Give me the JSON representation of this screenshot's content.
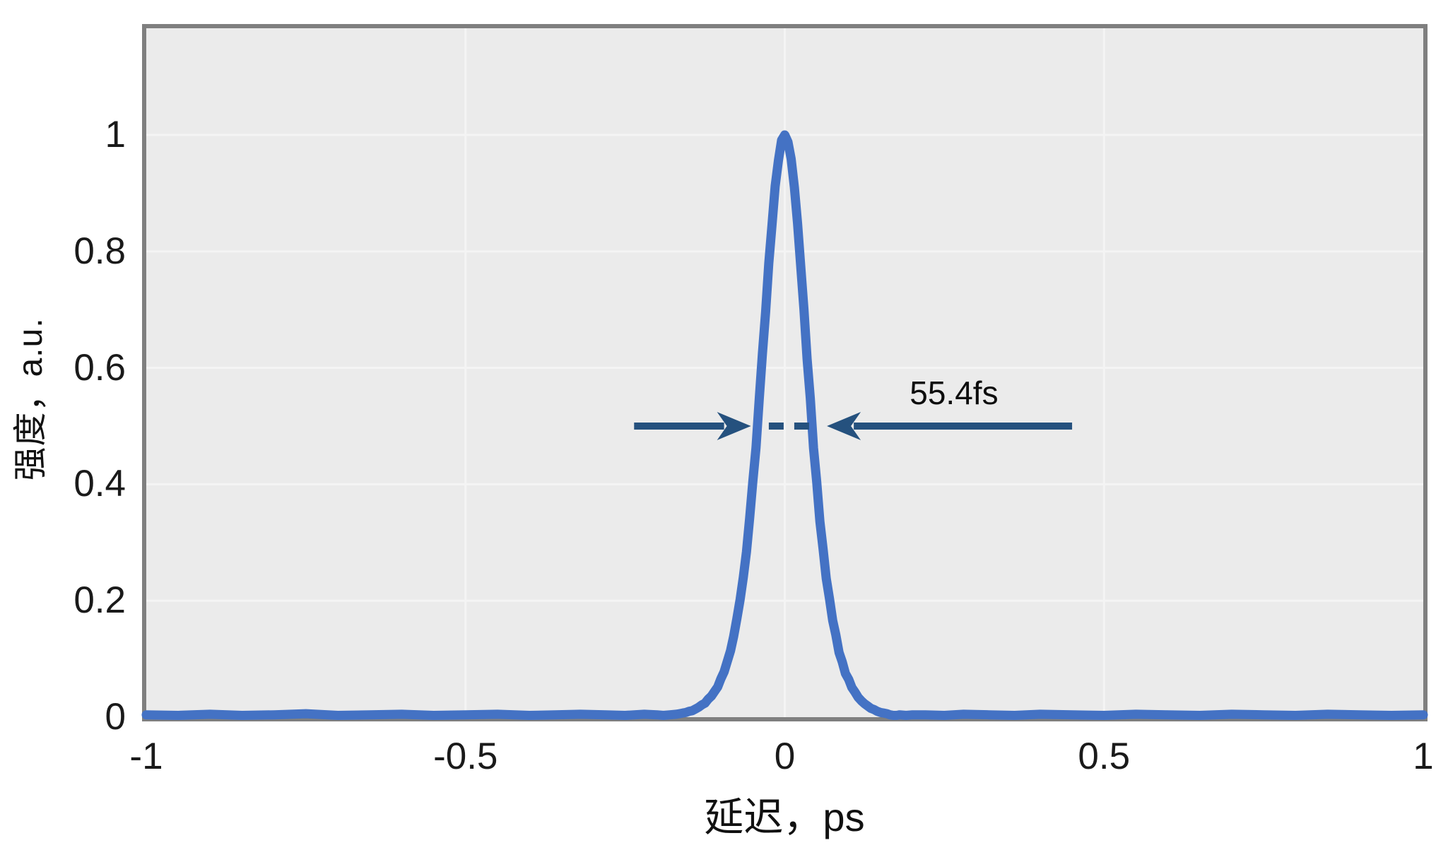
{
  "chart_data": {
    "type": "line",
    "title": "",
    "xlabel": "延迟，ps",
    "ylabel": "强度，a.u.",
    "xlim": [
      -1,
      1
    ],
    "ylim": [
      0,
      1.1833
    ],
    "grid": true,
    "legend": "none",
    "x_ticks": [
      -1,
      -0.5,
      0,
      0.5,
      1
    ],
    "x_tick_labels": [
      "-1",
      "-0.5",
      "0",
      "0.5",
      "1"
    ],
    "y_ticks": [
      0,
      0.2,
      0.4,
      0.6,
      0.8,
      1
    ],
    "y_tick_labels": [
      "0",
      "0.2",
      "0.4",
      "0.6",
      "0.8",
      "1"
    ],
    "plot_bg_color": "#ebebeb",
    "grid_color": "#f4f4f4",
    "border_color": "#7f7f7f",
    "series": [
      {
        "name": "autocorrelation-trace",
        "color": "#4472c4",
        "line_width": 13,
        "points": [
          [
            -1,
            0.004
          ],
          [
            -0.95,
            0.003
          ],
          [
            -0.9,
            0.005
          ],
          [
            -0.85,
            0.003
          ],
          [
            -0.8,
            0.004
          ],
          [
            -0.75,
            0.006
          ],
          [
            -0.7,
            0.003
          ],
          [
            -0.65,
            0.004
          ],
          [
            -0.6,
            0.005
          ],
          [
            -0.55,
            0.003
          ],
          [
            -0.5,
            0.004
          ],
          [
            -0.45,
            0.005
          ],
          [
            -0.4,
            0.003
          ],
          [
            -0.36,
            0.004
          ],
          [
            -0.32,
            0.005
          ],
          [
            -0.28,
            0.004
          ],
          [
            -0.25,
            0.003
          ],
          [
            -0.22,
            0.005
          ],
          [
            -0.2,
            0.004
          ],
          [
            -0.19,
            0.003
          ],
          [
            -0.18,
            0.004
          ],
          [
            -0.17,
            0.005
          ],
          [
            -0.165,
            0.006
          ],
          [
            -0.16,
            0.007
          ],
          [
            -0.155,
            0.008
          ],
          [
            -0.15,
            0.01
          ],
          [
            -0.145,
            0.011
          ],
          [
            -0.14,
            0.014
          ],
          [
            -0.135,
            0.017
          ],
          [
            -0.13,
            0.021
          ],
          [
            -0.125,
            0.024
          ],
          [
            -0.12,
            0.031
          ],
          [
            -0.115,
            0.036
          ],
          [
            -0.11,
            0.044
          ],
          [
            -0.105,
            0.052
          ],
          [
            -0.1,
            0.066
          ],
          [
            -0.095,
            0.078
          ],
          [
            -0.09,
            0.096
          ],
          [
            -0.085,
            0.114
          ],
          [
            -0.08,
            0.139
          ],
          [
            -0.075,
            0.169
          ],
          [
            -0.07,
            0.202
          ],
          [
            -0.065,
            0.24
          ],
          [
            -0.06,
            0.284
          ],
          [
            -0.055,
            0.342
          ],
          [
            -0.05,
            0.405
          ],
          [
            -0.045,
            0.463
          ],
          [
            -0.04,
            0.547
          ],
          [
            -0.035,
            0.625
          ],
          [
            -0.03,
            0.696
          ],
          [
            -0.025,
            0.78
          ],
          [
            -0.02,
            0.845
          ],
          [
            -0.015,
            0.912
          ],
          [
            -0.01,
            0.956
          ],
          [
            -0.005,
            0.991
          ],
          [
            0,
            1
          ],
          [
            0.005,
            0.988
          ],
          [
            0.01,
            0.959
          ],
          [
            0.015,
            0.91
          ],
          [
            0.02,
            0.848
          ],
          [
            0.025,
            0.774
          ],
          [
            0.03,
            0.701
          ],
          [
            0.035,
            0.615
          ],
          [
            0.04,
            0.548
          ],
          [
            0.045,
            0.462
          ],
          [
            0.05,
            0.404
          ],
          [
            0.055,
            0.336
          ],
          [
            0.06,
            0.289
          ],
          [
            0.065,
            0.238
          ],
          [
            0.07,
            0.204
          ],
          [
            0.075,
            0.166
          ],
          [
            0.08,
            0.141
          ],
          [
            0.085,
            0.111
          ],
          [
            0.09,
            0.095
          ],
          [
            0.095,
            0.075
          ],
          [
            0.1,
            0.065
          ],
          [
            0.105,
            0.051
          ],
          [
            0.11,
            0.043
          ],
          [
            0.115,
            0.034
          ],
          [
            0.12,
            0.028
          ],
          [
            0.125,
            0.023
          ],
          [
            0.13,
            0.019
          ],
          [
            0.135,
            0.015
          ],
          [
            0.14,
            0.013
          ],
          [
            0.145,
            0.01
          ],
          [
            0.15,
            0.008
          ],
          [
            0.155,
            0.007
          ],
          [
            0.16,
            0.006
          ],
          [
            0.165,
            0.004
          ],
          [
            0.17,
            0.003
          ],
          [
            0.175,
            0.003
          ],
          [
            0.18,
            0.004
          ],
          [
            0.19,
            0.003
          ],
          [
            0.2,
            0.004
          ],
          [
            0.22,
            0.004
          ],
          [
            0.25,
            0.003
          ],
          [
            0.28,
            0.005
          ],
          [
            0.32,
            0.004
          ],
          [
            0.36,
            0.003
          ],
          [
            0.4,
            0.005
          ],
          [
            0.45,
            0.004
          ],
          [
            0.5,
            0.003
          ],
          [
            0.55,
            0.005
          ],
          [
            0.6,
            0.004
          ],
          [
            0.65,
            0.003
          ],
          [
            0.7,
            0.005
          ],
          [
            0.75,
            0.004
          ],
          [
            0.8,
            0.003
          ],
          [
            0.85,
            0.005
          ],
          [
            0.9,
            0.004
          ],
          [
            0.95,
            0.003
          ],
          [
            1,
            0.004
          ]
        ]
      }
    ],
    "annotation": {
      "label": "55.4fs",
      "color": "#25517e",
      "y_value": 0.5,
      "left_arrow": {
        "x_start": -0.236,
        "x_tip": -0.053
      },
      "right_arrow": {
        "x_start": 0.45,
        "x_tip": 0.066
      },
      "dash_gap": {
        "x1": -0.025,
        "x2": 0.039
      },
      "label_x": 0.265,
      "label_y": 0.557,
      "shaft_width": 10,
      "head_length": 48,
      "head_half_height": 20
    }
  }
}
